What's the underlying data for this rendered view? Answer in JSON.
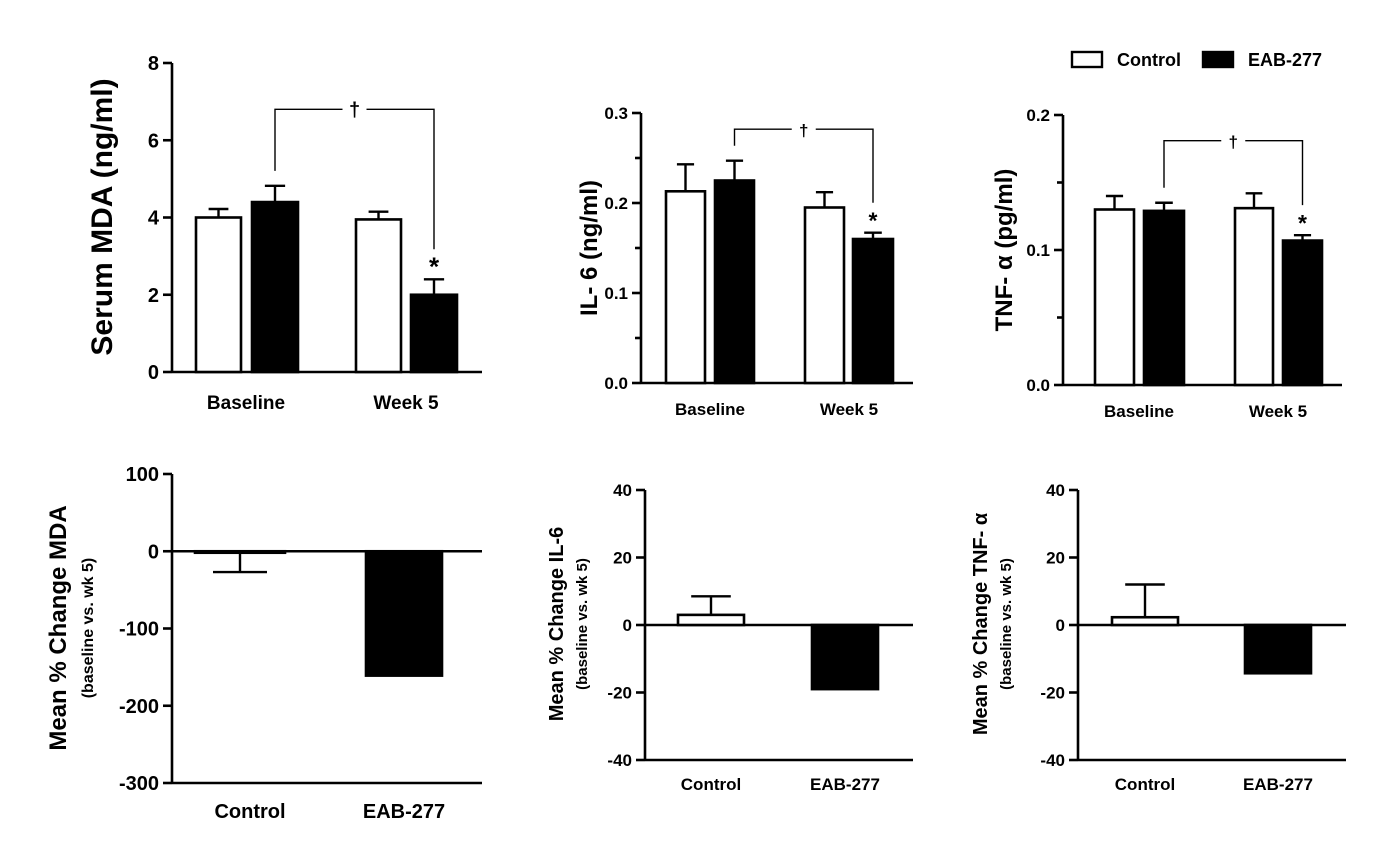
{
  "legend": {
    "position": "top-right",
    "items": [
      {
        "label": "Control",
        "color": "#ffffff"
      },
      {
        "label": "EAB-277",
        "color": "#000000"
      }
    ]
  },
  "chart_data": [
    {
      "id": "mda-serum",
      "type": "bar",
      "title": "",
      "xlabel": "",
      "ylabel": "Serum MDA (ng/ml)",
      "ylabel_size": "large",
      "ylim": [
        0,
        8
      ],
      "yticks": [
        0,
        2,
        4,
        6,
        8
      ],
      "yticklabels": [
        "0",
        "2",
        "4",
        "6",
        "8"
      ],
      "minor_ticks": false,
      "categories": [
        "Baseline",
        "Week 5"
      ],
      "series": [
        {
          "name": "Control",
          "values": [
            4.0,
            3.95
          ],
          "error": [
            0.22,
            0.2
          ]
        },
        {
          "name": "EAB-277",
          "values": [
            4.4,
            2.0
          ],
          "error": [
            0.42,
            0.4
          ]
        }
      ],
      "annotations": [
        {
          "text": "*",
          "category": "Week 5",
          "series": "EAB-277",
          "placement": "above"
        },
        {
          "text": "†",
          "type": "bracket",
          "from": {
            "category": "Baseline",
            "series": "EAB-277"
          },
          "to": {
            "category": "Week 5",
            "series": "EAB-277"
          },
          "level": 6.8
        }
      ]
    },
    {
      "id": "il6-serum",
      "type": "bar",
      "title": "",
      "xlabel": "",
      "ylabel": "IL- 6 (ng/ml)",
      "ylabel_size": "medium",
      "ylim": [
        0,
        0.3
      ],
      "yticks": [
        0,
        0.1,
        0.2,
        0.3
      ],
      "yticklabels": [
        "0.0",
        "0.1",
        "0.2",
        "0.3"
      ],
      "minor_ticks": true,
      "categories": [
        "Baseline",
        "Week 5"
      ],
      "series": [
        {
          "name": "Control",
          "values": [
            0.213,
            0.195
          ],
          "error": [
            0.03,
            0.017
          ]
        },
        {
          "name": "EAB-277",
          "values": [
            0.225,
            0.16
          ],
          "error": [
            0.022,
            0.007
          ]
        }
      ],
      "annotations": [
        {
          "text": "*",
          "category": "Week 5",
          "series": "EAB-277",
          "placement": "above"
        },
        {
          "text": "†",
          "type": "bracket",
          "from": {
            "category": "Baseline",
            "series": "EAB-277"
          },
          "to": {
            "category": "Week 5",
            "series": "EAB-277"
          },
          "level": 0.282
        }
      ]
    },
    {
      "id": "tnf-serum",
      "type": "bar",
      "title": "",
      "xlabel": "",
      "ylabel": "TNF- α (pg/ml)",
      "ylabel_size": "medium",
      "ylim": [
        0,
        0.2
      ],
      "yticks": [
        0,
        0.1,
        0.2
      ],
      "yticklabels": [
        "0.0",
        "0.1",
        "0.2"
      ],
      "minor_ticks": true,
      "categories": [
        "Baseline",
        "Week 5"
      ],
      "series": [
        {
          "name": "Control",
          "values": [
            0.13,
            0.131
          ],
          "error": [
            0.01,
            0.011
          ]
        },
        {
          "name": "EAB-277",
          "values": [
            0.129,
            0.107
          ],
          "error": [
            0.006,
            0.004
          ]
        }
      ],
      "annotations": [
        {
          "text": "*",
          "category": "Week 5",
          "series": "EAB-277",
          "placement": "above"
        },
        {
          "text": "†",
          "type": "bracket",
          "from": {
            "category": "Baseline",
            "series": "EAB-277"
          },
          "to": {
            "category": "Week 5",
            "series": "EAB-277"
          },
          "level": 0.181
        }
      ]
    },
    {
      "id": "mda-change",
      "type": "bar",
      "title": "",
      "xlabel": "",
      "ylabel": "Mean % Change MDA",
      "ylabel2": "(baseline vs. wk 5)",
      "ylim": [
        -300,
        100
      ],
      "yticks": [
        -300,
        -200,
        -100,
        0,
        100
      ],
      "yticklabels": [
        "-300",
        "-200",
        "-100",
        "0",
        "100"
      ],
      "minor_ticks": false,
      "categories": [
        "Control",
        "EAB-277"
      ],
      "values": [
        -1,
        -161
      ],
      "error": [
        -27,
        -39
      ],
      "colors": [
        "#ffffff",
        "#000000"
      ],
      "annotations": [
        {
          "text": "*",
          "category": "EAB-277",
          "placement": "below"
        }
      ]
    },
    {
      "id": "il6-change",
      "type": "bar",
      "title": "",
      "xlabel": "",
      "ylabel": "Mean % Change IL-6",
      "ylabel2": "(baseline vs. wk 5)",
      "ylim": [
        -40,
        40
      ],
      "yticks": [
        -40,
        -20,
        0,
        20,
        40
      ],
      "yticklabels": [
        "-40",
        "-20",
        "0",
        "20",
        "40"
      ],
      "minor_ticks": false,
      "categories": [
        "Control",
        "EAB-277"
      ],
      "values": [
        3,
        -19
      ],
      "error": [
        8.5,
        -6.5
      ],
      "colors": [
        "#ffffff",
        "#000000"
      ],
      "annotations": [
        {
          "text": "*",
          "category": "EAB-277",
          "placement": "below"
        }
      ]
    },
    {
      "id": "tnf-change",
      "type": "bar",
      "title": "",
      "xlabel": "",
      "ylabel": "Mean % Change TNF- α",
      "ylabel2": "(baseline vs. wk 5)",
      "ylim": [
        -40,
        40
      ],
      "yticks": [
        -40,
        -20,
        0,
        20,
        40
      ],
      "yticklabels": [
        "-40",
        "-20",
        "0",
        "20",
        "40"
      ],
      "minor_ticks": false,
      "categories": [
        "Control",
        "EAB-277"
      ],
      "values": [
        2.3,
        -14.3
      ],
      "error": [
        12,
        -4.2
      ],
      "colors": [
        "#ffffff",
        "#000000"
      ],
      "annotations": [
        {
          "text": "*",
          "category": "EAB-277",
          "placement": "below"
        }
      ]
    }
  ]
}
